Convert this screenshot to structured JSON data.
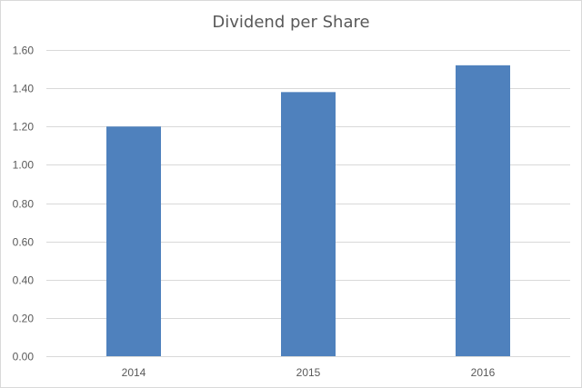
{
  "chart_data": {
    "type": "bar",
    "title": "Dividend per Share",
    "xlabel": "",
    "ylabel": "",
    "categories": [
      "2014",
      "2015",
      "2016"
    ],
    "series": [
      {
        "values": [
          1.2,
          1.38,
          1.52
        ]
      }
    ],
    "ylim": [
      0,
      1.6
    ],
    "yticks": [
      "0.00",
      "0.20",
      "0.40",
      "0.60",
      "0.80",
      "1.00",
      "1.20",
      "1.40",
      "1.60"
    ],
    "grid": true,
    "legend": "none",
    "colors": {
      "bar": "#4f81bd",
      "grid": "#d9d9d9",
      "text": "#595959"
    }
  }
}
